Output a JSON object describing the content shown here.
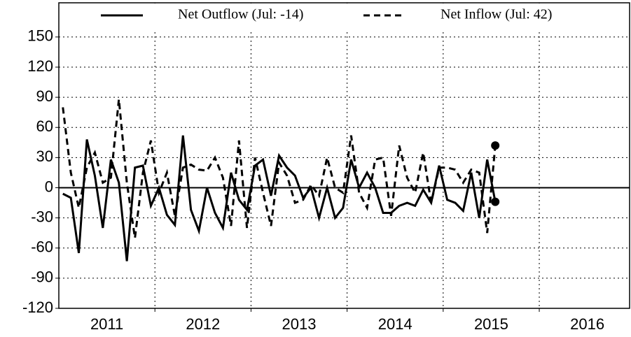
{
  "chart_data": {
    "type": "line",
    "x": [
      2011.042,
      2011.125,
      2011.208,
      2011.292,
      2011.375,
      2011.458,
      2011.542,
      2011.625,
      2011.708,
      2011.792,
      2011.875,
      2011.958,
      2012.042,
      2012.125,
      2012.208,
      2012.292,
      2012.375,
      2012.458,
      2012.542,
      2012.625,
      2012.708,
      2012.792,
      2012.875,
      2012.958,
      2013.042,
      2013.125,
      2013.208,
      2013.292,
      2013.375,
      2013.458,
      2013.542,
      2013.625,
      2013.708,
      2013.792,
      2013.875,
      2013.958,
      2014.042,
      2014.125,
      2014.208,
      2014.292,
      2014.375,
      2014.458,
      2014.542,
      2014.625,
      2014.708,
      2014.792,
      2014.875,
      2014.958,
      2015.042,
      2015.125,
      2015.208,
      2015.292,
      2015.375,
      2015.458,
      2015.542
    ],
    "series": [
      {
        "name": "Net Outflow (Jul: -14)",
        "color": "#000000",
        "dash": false,
        "values": [
          -6,
          -10,
          -65,
          48,
          12,
          -40,
          28,
          5,
          -73,
          20,
          22,
          -18,
          0,
          -27,
          -37,
          52,
          -22,
          -43,
          0,
          -25,
          -40,
          15,
          -12,
          -22,
          22,
          28,
          -8,
          32,
          20,
          12,
          -10,
          0,
          -30,
          0,
          -30,
          -20,
          28,
          0,
          15,
          0,
          -25,
          -25,
          -18,
          -15,
          -18,
          -2,
          -15,
          22,
          -12,
          -15,
          -23,
          15,
          -30,
          28,
          -14
        ]
      },
      {
        "name": "Net Inflow (Jul: 42)",
        "color": "#000000",
        "dash": true,
        "values": [
          80,
          15,
          -20,
          20,
          35,
          5,
          10,
          88,
          5,
          -50,
          15,
          47,
          -5,
          15,
          -28,
          20,
          23,
          18,
          17,
          30,
          10,
          -38,
          47,
          -40,
          30,
          -5,
          -38,
          25,
          12,
          -15,
          -12,
          3,
          -8,
          30,
          0,
          -5,
          52,
          -5,
          -20,
          28,
          30,
          -28,
          42,
          10,
          -5,
          35,
          -15,
          20,
          20,
          18,
          5,
          18,
          15,
          -45,
          42
        ]
      }
    ],
    "xlim": [
      2011.0,
      2016.94
    ],
    "xticks": [
      {
        "value": 2011.5,
        "label": "2011"
      },
      {
        "value": 2012.5,
        "label": "2012"
      },
      {
        "value": 2013.5,
        "label": "2013"
      },
      {
        "value": 2014.5,
        "label": "2014"
      },
      {
        "value": 2015.5,
        "label": "2015"
      },
      {
        "value": 2016.5,
        "label": "2016"
      }
    ],
    "xgrid": [
      2012,
      2013,
      2014,
      2015,
      2016
    ],
    "ylim": [
      -120,
      184
    ],
    "yticks": [
      -120,
      -90,
      -60,
      -30,
      0,
      30,
      60,
      90,
      120,
      150
    ],
    "grid": true,
    "legend": "top"
  }
}
